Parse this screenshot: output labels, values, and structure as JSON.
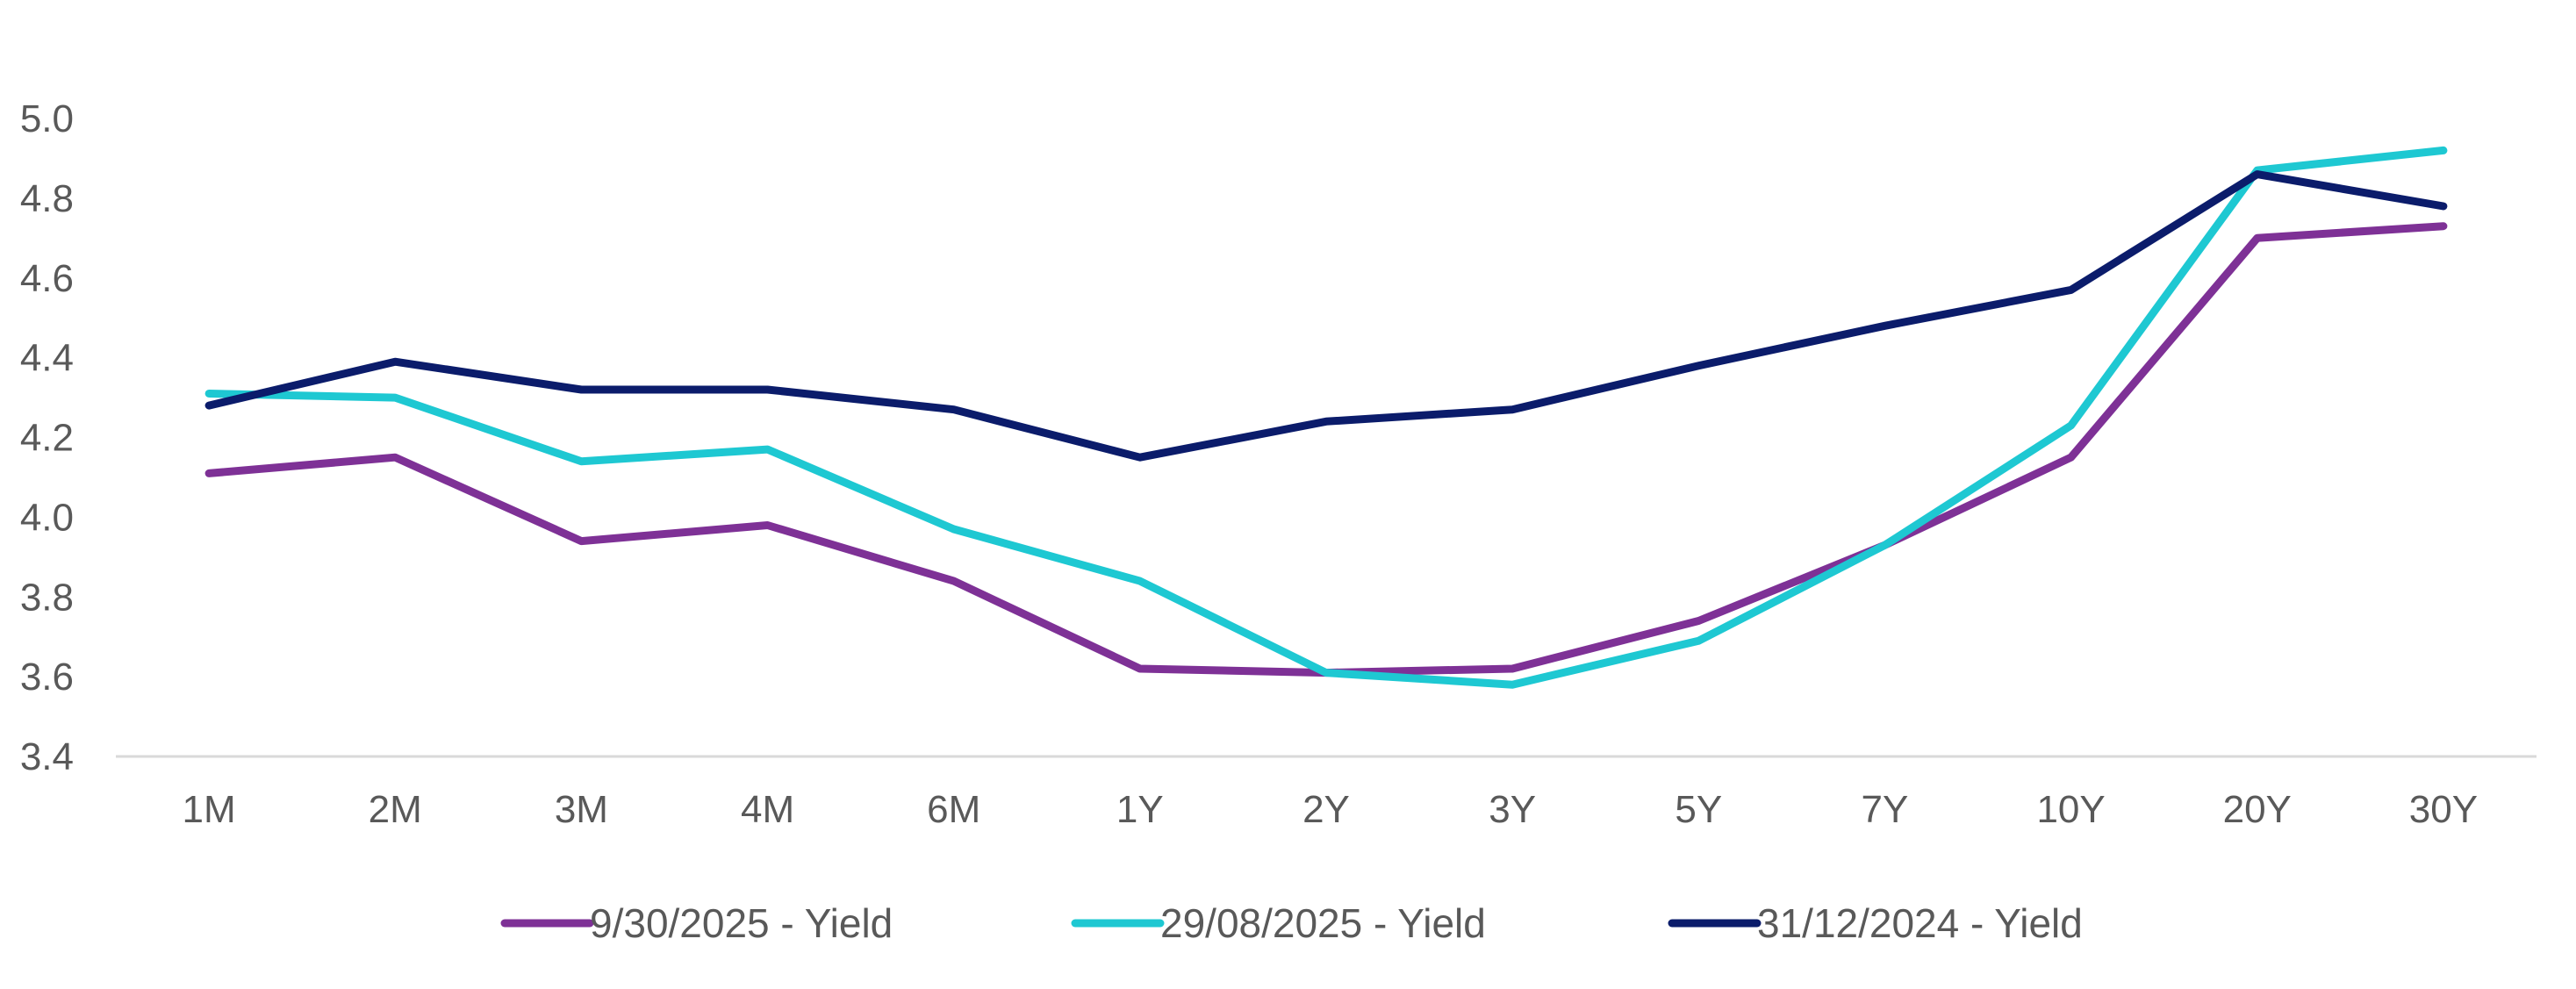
{
  "chart_data": {
    "type": "line",
    "title": "",
    "xlabel": "",
    "ylabel": "",
    "categories": [
      "1M",
      "2M",
      "3M",
      "4M",
      "6M",
      "1Y",
      "2Y",
      "3Y",
      "5Y",
      "7Y",
      "10Y",
      "20Y",
      "30Y"
    ],
    "y_ticks": [
      "3.4",
      "3.6",
      "3.8",
      "4.0",
      "4.2",
      "4.4",
      "4.6",
      "4.8",
      "5.0"
    ],
    "ylim": [
      3.4,
      5.0
    ],
    "grid": false,
    "legend_position": "bottom",
    "series": [
      {
        "name": "9/30/2025 - Yield",
        "color": "#7E3196",
        "values": [
          4.11,
          4.15,
          3.94,
          3.98,
          3.84,
          3.62,
          3.61,
          3.62,
          3.74,
          3.93,
          4.15,
          4.7,
          4.73
        ]
      },
      {
        "name": "29/08/2025 - Yield",
        "color": "#1EC8D2",
        "values": [
          4.31,
          4.3,
          4.14,
          4.17,
          3.97,
          3.84,
          3.61,
          3.58,
          3.69,
          3.93,
          4.23,
          4.87,
          4.92
        ]
      },
      {
        "name": "31/12/2024 - Yield",
        "color": "#0B1C6B",
        "values": [
          4.28,
          4.39,
          4.32,
          4.32,
          4.27,
          4.15,
          4.24,
          4.27,
          4.38,
          4.48,
          4.57,
          4.86,
          4.78
        ]
      }
    ]
  }
}
